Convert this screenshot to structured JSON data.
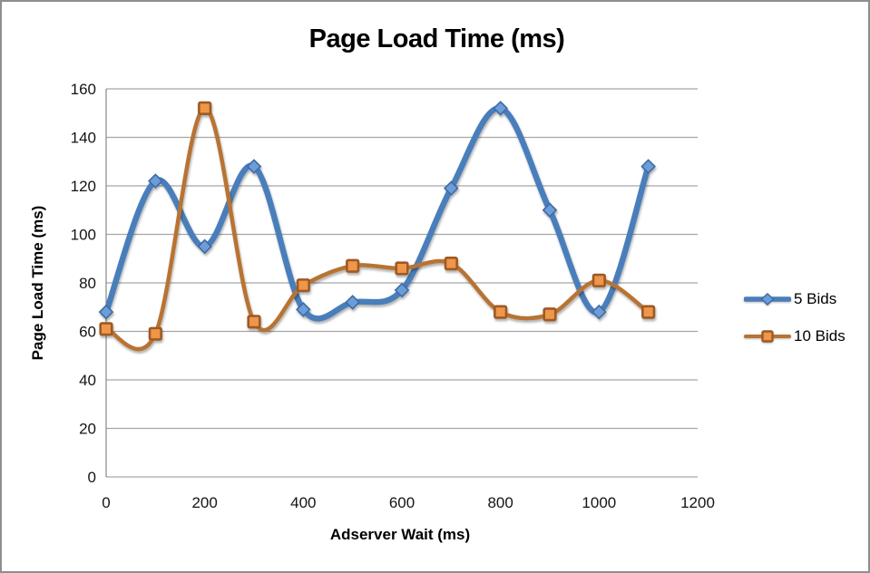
{
  "window": {
    "background": "#ffffff",
    "border_color": "#8e8e8e"
  },
  "chart_data": {
    "type": "line",
    "title": "Page Load Time (ms)",
    "xlabel": "Adserver Wait (ms)",
    "ylabel": "Page Load Time (ms)",
    "x": [
      0,
      100,
      200,
      300,
      400,
      500,
      600,
      700,
      800,
      900,
      1000,
      1100
    ],
    "series": [
      {
        "name": "5 Bids",
        "values": [
          68,
          122,
          95,
          128,
          69,
          72,
          77,
          119,
          152,
          110,
          68,
          128
        ],
        "marker": "diamond",
        "line_color": "#4a7ebb",
        "marker_fill": "#6d9dd8",
        "marker_stroke": "#3c6ba3",
        "line_width": 6.5
      },
      {
        "name": "10 Bids",
        "values": [
          61,
          59,
          152,
          64,
          79,
          87,
          86,
          88,
          68,
          67,
          81,
          68
        ],
        "marker": "square",
        "line_color": "#b87333",
        "marker_fill": "#f0964a",
        "marker_stroke": "#9c5a26",
        "line_width": 4.5
      }
    ],
    "xlim": [
      0,
      1200
    ],
    "ylim": [
      0,
      160
    ],
    "xticks": [
      0,
      200,
      400,
      600,
      800,
      1000,
      1200
    ],
    "yticks": [
      0,
      20,
      40,
      60,
      80,
      100,
      120,
      140,
      160
    ],
    "grid": true,
    "smooth": true,
    "legend_position": "right",
    "gridline_color": "#a6a6a6",
    "axis_line_color": "#898989",
    "tick_label_color": "#141414",
    "tick_font_size": 17
  }
}
